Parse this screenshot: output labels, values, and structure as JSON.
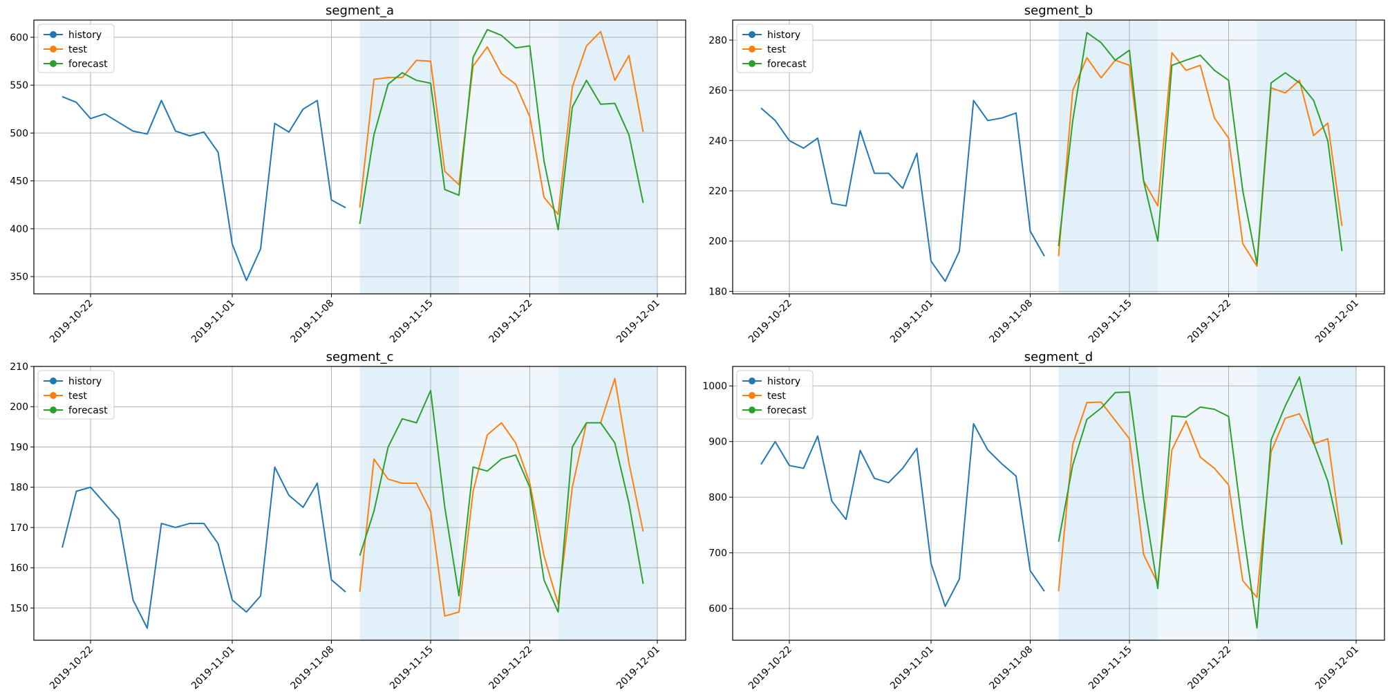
{
  "colors": {
    "history": "#1f77b4",
    "test": "#ff7f0e",
    "forecast": "#2ca02c",
    "band_dark": "#d8ebf7",
    "band_light": "#eaf4fb",
    "grid": "#b0b0b0"
  },
  "chart_data": [
    {
      "type": "line",
      "title": "segment_a",
      "legend": {
        "placement": "upper-left",
        "entries": [
          "history",
          "test",
          "forecast"
        ]
      },
      "grid": true,
      "x_ticks": [
        "2019-10-22",
        "2019-11-01",
        "2019-11-08",
        "2019-11-15",
        "2019-11-22",
        "2019-12-01"
      ],
      "y_ticks": [
        350,
        400,
        450,
        500,
        550,
        600
      ],
      "ylim": [
        332,
        618
      ],
      "xlim": [
        "2019-10-18",
        "2019-12-03"
      ],
      "shaded_bands": [
        [
          "2019-11-10",
          "2019-11-17"
        ],
        [
          "2019-11-17",
          "2019-11-24"
        ],
        [
          "2019-11-24",
          "2019-12-01"
        ]
      ],
      "series": [
        {
          "name": "history",
          "start": "2019-10-20",
          "values": [
            538,
            532,
            515,
            520,
            511,
            502,
            499,
            534,
            502,
            497,
            501,
            480,
            384,
            346,
            379,
            510,
            501,
            525,
            534,
            430,
            422
          ]
        },
        {
          "name": "test",
          "start": "2019-11-10",
          "values": [
            422,
            556,
            558,
            558,
            576,
            575,
            460,
            446,
            570,
            590,
            562,
            551,
            517,
            433,
            415,
            548,
            591,
            606,
            555,
            581,
            501
          ]
        },
        {
          "name": "forecast",
          "start": "2019-11-10",
          "values": [
            405,
            498,
            551,
            563,
            555,
            552,
            441,
            435,
            579,
            608,
            602,
            589,
            591,
            471,
            399,
            527,
            555,
            530,
            531,
            498,
            427
          ]
        }
      ]
    },
    {
      "type": "line",
      "title": "segment_b",
      "legend": {
        "placement": "upper-left",
        "entries": [
          "history",
          "test",
          "forecast"
        ]
      },
      "grid": true,
      "x_ticks": [
        "2019-10-22",
        "2019-11-01",
        "2019-11-08",
        "2019-11-15",
        "2019-11-22",
        "2019-12-01"
      ],
      "y_ticks": [
        180,
        200,
        220,
        240,
        260,
        280
      ],
      "ylim": [
        179,
        288
      ],
      "xlim": [
        "2019-10-18",
        "2019-12-03"
      ],
      "shaded_bands": [
        [
          "2019-11-10",
          "2019-11-17"
        ],
        [
          "2019-11-17",
          "2019-11-24"
        ],
        [
          "2019-11-24",
          "2019-12-01"
        ]
      ],
      "series": [
        {
          "name": "history",
          "start": "2019-10-20",
          "values": [
            253,
            248,
            240,
            237,
            241,
            215,
            214,
            244,
            227,
            227,
            221,
            235,
            192,
            184,
            196,
            256,
            248,
            249,
            251,
            204,
            194
          ]
        },
        {
          "name": "test",
          "start": "2019-11-10",
          "values": [
            194,
            260,
            273,
            265,
            272,
            270,
            224,
            214,
            275,
            268,
            270,
            249,
            241,
            199,
            190,
            261,
            259,
            264,
            242,
            247,
            206
          ]
        },
        {
          "name": "forecast",
          "start": "2019-11-10",
          "values": [
            198,
            248,
            283,
            279,
            272,
            276,
            224,
            200,
            270,
            272,
            274,
            268,
            264,
            220,
            191,
            263,
            267,
            263,
            256,
            240,
            196
          ]
        }
      ]
    },
    {
      "type": "line",
      "title": "segment_c",
      "legend": {
        "placement": "upper-left",
        "entries": [
          "history",
          "test",
          "forecast"
        ]
      },
      "grid": true,
      "x_ticks": [
        "2019-10-22",
        "2019-11-01",
        "2019-11-08",
        "2019-11-15",
        "2019-11-22",
        "2019-12-01"
      ],
      "y_ticks": [
        150,
        160,
        170,
        180,
        190,
        200,
        210
      ],
      "ylim": [
        142,
        210
      ],
      "xlim": [
        "2019-10-18",
        "2019-12-03"
      ],
      "shaded_bands": [
        [
          "2019-11-10",
          "2019-11-17"
        ],
        [
          "2019-11-17",
          "2019-11-24"
        ],
        [
          "2019-11-24",
          "2019-12-01"
        ]
      ],
      "series": [
        {
          "name": "history",
          "start": "2019-10-20",
          "values": [
            165,
            179,
            180,
            176,
            172,
            152,
            145,
            171,
            170,
            171,
            171,
            166,
            152,
            149,
            153,
            185,
            178,
            175,
            181,
            157,
            154
          ]
        },
        {
          "name": "test",
          "start": "2019-11-10",
          "values": [
            154,
            187,
            182,
            181,
            181,
            174,
            148,
            149,
            179,
            193,
            196,
            191,
            181,
            163,
            151,
            180,
            196,
            196,
            207,
            186,
            169
          ]
        },
        {
          "name": "forecast",
          "start": "2019-11-10",
          "values": [
            163,
            174,
            190,
            197,
            196,
            204,
            175,
            153,
            185,
            184,
            187,
            188,
            180,
            157,
            149,
            190,
            196,
            196,
            191,
            176,
            156
          ]
        }
      ]
    },
    {
      "type": "line",
      "title": "segment_d",
      "legend": {
        "placement": "upper-left",
        "entries": [
          "history",
          "test",
          "forecast"
        ]
      },
      "grid": true,
      "x_ticks": [
        "2019-10-22",
        "2019-11-01",
        "2019-11-08",
        "2019-11-15",
        "2019-11-22",
        "2019-12-01"
      ],
      "y_ticks": [
        600,
        700,
        800,
        900,
        1000
      ],
      "ylim": [
        543,
        1035
      ],
      "xlim": [
        "2019-10-18",
        "2019-12-03"
      ],
      "shaded_bands": [
        [
          "2019-11-10",
          "2019-11-17"
        ],
        [
          "2019-11-17",
          "2019-11-24"
        ],
        [
          "2019-11-24",
          "2019-12-01"
        ]
      ],
      "series": [
        {
          "name": "history",
          "start": "2019-10-20",
          "values": [
            859,
            900,
            857,
            852,
            910,
            793,
            760,
            884,
            834,
            826,
            852,
            888,
            681,
            604,
            653,
            932,
            885,
            860,
            838,
            668,
            631
          ]
        },
        {
          "name": "test",
          "start": "2019-11-10",
          "values": [
            631,
            895,
            970,
            971,
            938,
            905,
            697,
            645,
            885,
            937,
            872,
            852,
            822,
            650,
            620,
            882,
            942,
            950,
            896,
            905,
            718
          ]
        },
        {
          "name": "forecast",
          "start": "2019-11-10",
          "values": [
            720,
            858,
            940,
            960,
            988,
            989,
            797,
            636,
            946,
            944,
            962,
            958,
            945,
            745,
            565,
            903,
            964,
            1016,
            898,
            829,
            715
          ]
        }
      ]
    }
  ]
}
